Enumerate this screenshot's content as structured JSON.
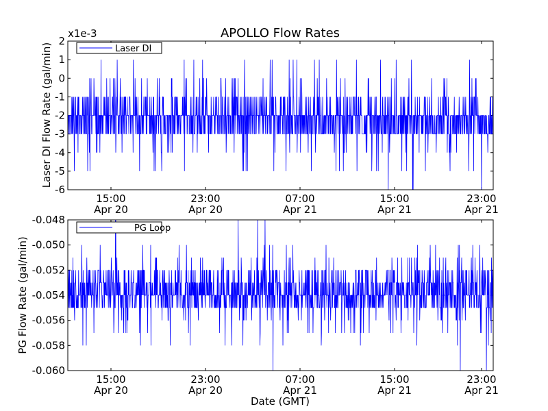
{
  "figure": {
    "title": "APOLLO Flow Rates"
  },
  "chart_data": [
    {
      "type": "line",
      "ylabel": "Laser DI Flow Rate (gal/min)",
      "scale_note": "x1e-3",
      "ylim": [
        -6,
        2
      ],
      "yticks": [
        -6,
        -5,
        -4,
        -3,
        -2,
        -1,
        0,
        1,
        2
      ],
      "ytick_labels": [
        "-6",
        "-5",
        "-4",
        "-3",
        "-2",
        "-1",
        "0",
        "1",
        "2"
      ],
      "xticks": [
        {
          "time": "15:00",
          "date": "Apr 20"
        },
        {
          "time": "23:00",
          "date": "Apr 20"
        },
        {
          "time": "07:00",
          "date": "Apr 21"
        },
        {
          "time": "15:00",
          "date": "Apr 21"
        },
        {
          "time": "23:00",
          "date": "Apr 21"
        }
      ],
      "legend": {
        "position": "top-left",
        "entries": [
          "Laser DI"
        ]
      },
      "series": [
        {
          "name": "Laser DI",
          "color": "#0000ff",
          "baseline_values": [
            -2,
            -3,
            -2,
            -1,
            -3,
            -2,
            -2,
            -3
          ],
          "common_spikes": [
            0,
            -1,
            -4,
            -4,
            -1,
            0
          ],
          "spike_high": 1,
          "spike_low": -5,
          "extreme_spikes": [
            2,
            -6
          ]
        }
      ]
    },
    {
      "type": "line",
      "ylabel": "PG Flow Rate (gal/min)",
      "xlabel": "Date (GMT)",
      "ylim": [
        -0.06,
        -0.048
      ],
      "yticks": [
        -0.06,
        -0.058,
        -0.056,
        -0.054,
        -0.052,
        -0.05,
        -0.048
      ],
      "ytick_labels": [
        "-0.060",
        "-0.058",
        "-0.056",
        "-0.054",
        "-0.052",
        "-0.050",
        "-0.048"
      ],
      "xticks": [
        {
          "time": "15:00",
          "date": "Apr 20"
        },
        {
          "time": "23:00",
          "date": "Apr 20"
        },
        {
          "time": "07:00",
          "date": "Apr 21"
        },
        {
          "time": "15:00",
          "date": "Apr 21"
        },
        {
          "time": "23:00",
          "date": "Apr 21"
        }
      ],
      "legend": {
        "position": "top-left",
        "entries": [
          "PG Loop"
        ]
      },
      "series": [
        {
          "name": "PG Loop",
          "color": "#0000ff",
          "baseline_values": [
            -0.054,
            -0.055,
            -0.053,
            -0.054,
            -0.052,
            -0.055,
            -0.054,
            -0.053
          ],
          "common_spikes": [
            -0.052,
            -0.056,
            -0.051,
            -0.057
          ],
          "spike_high": -0.05,
          "spike_low": -0.058,
          "extreme_spikes": [
            -0.048,
            -0.06
          ]
        }
      ]
    }
  ]
}
